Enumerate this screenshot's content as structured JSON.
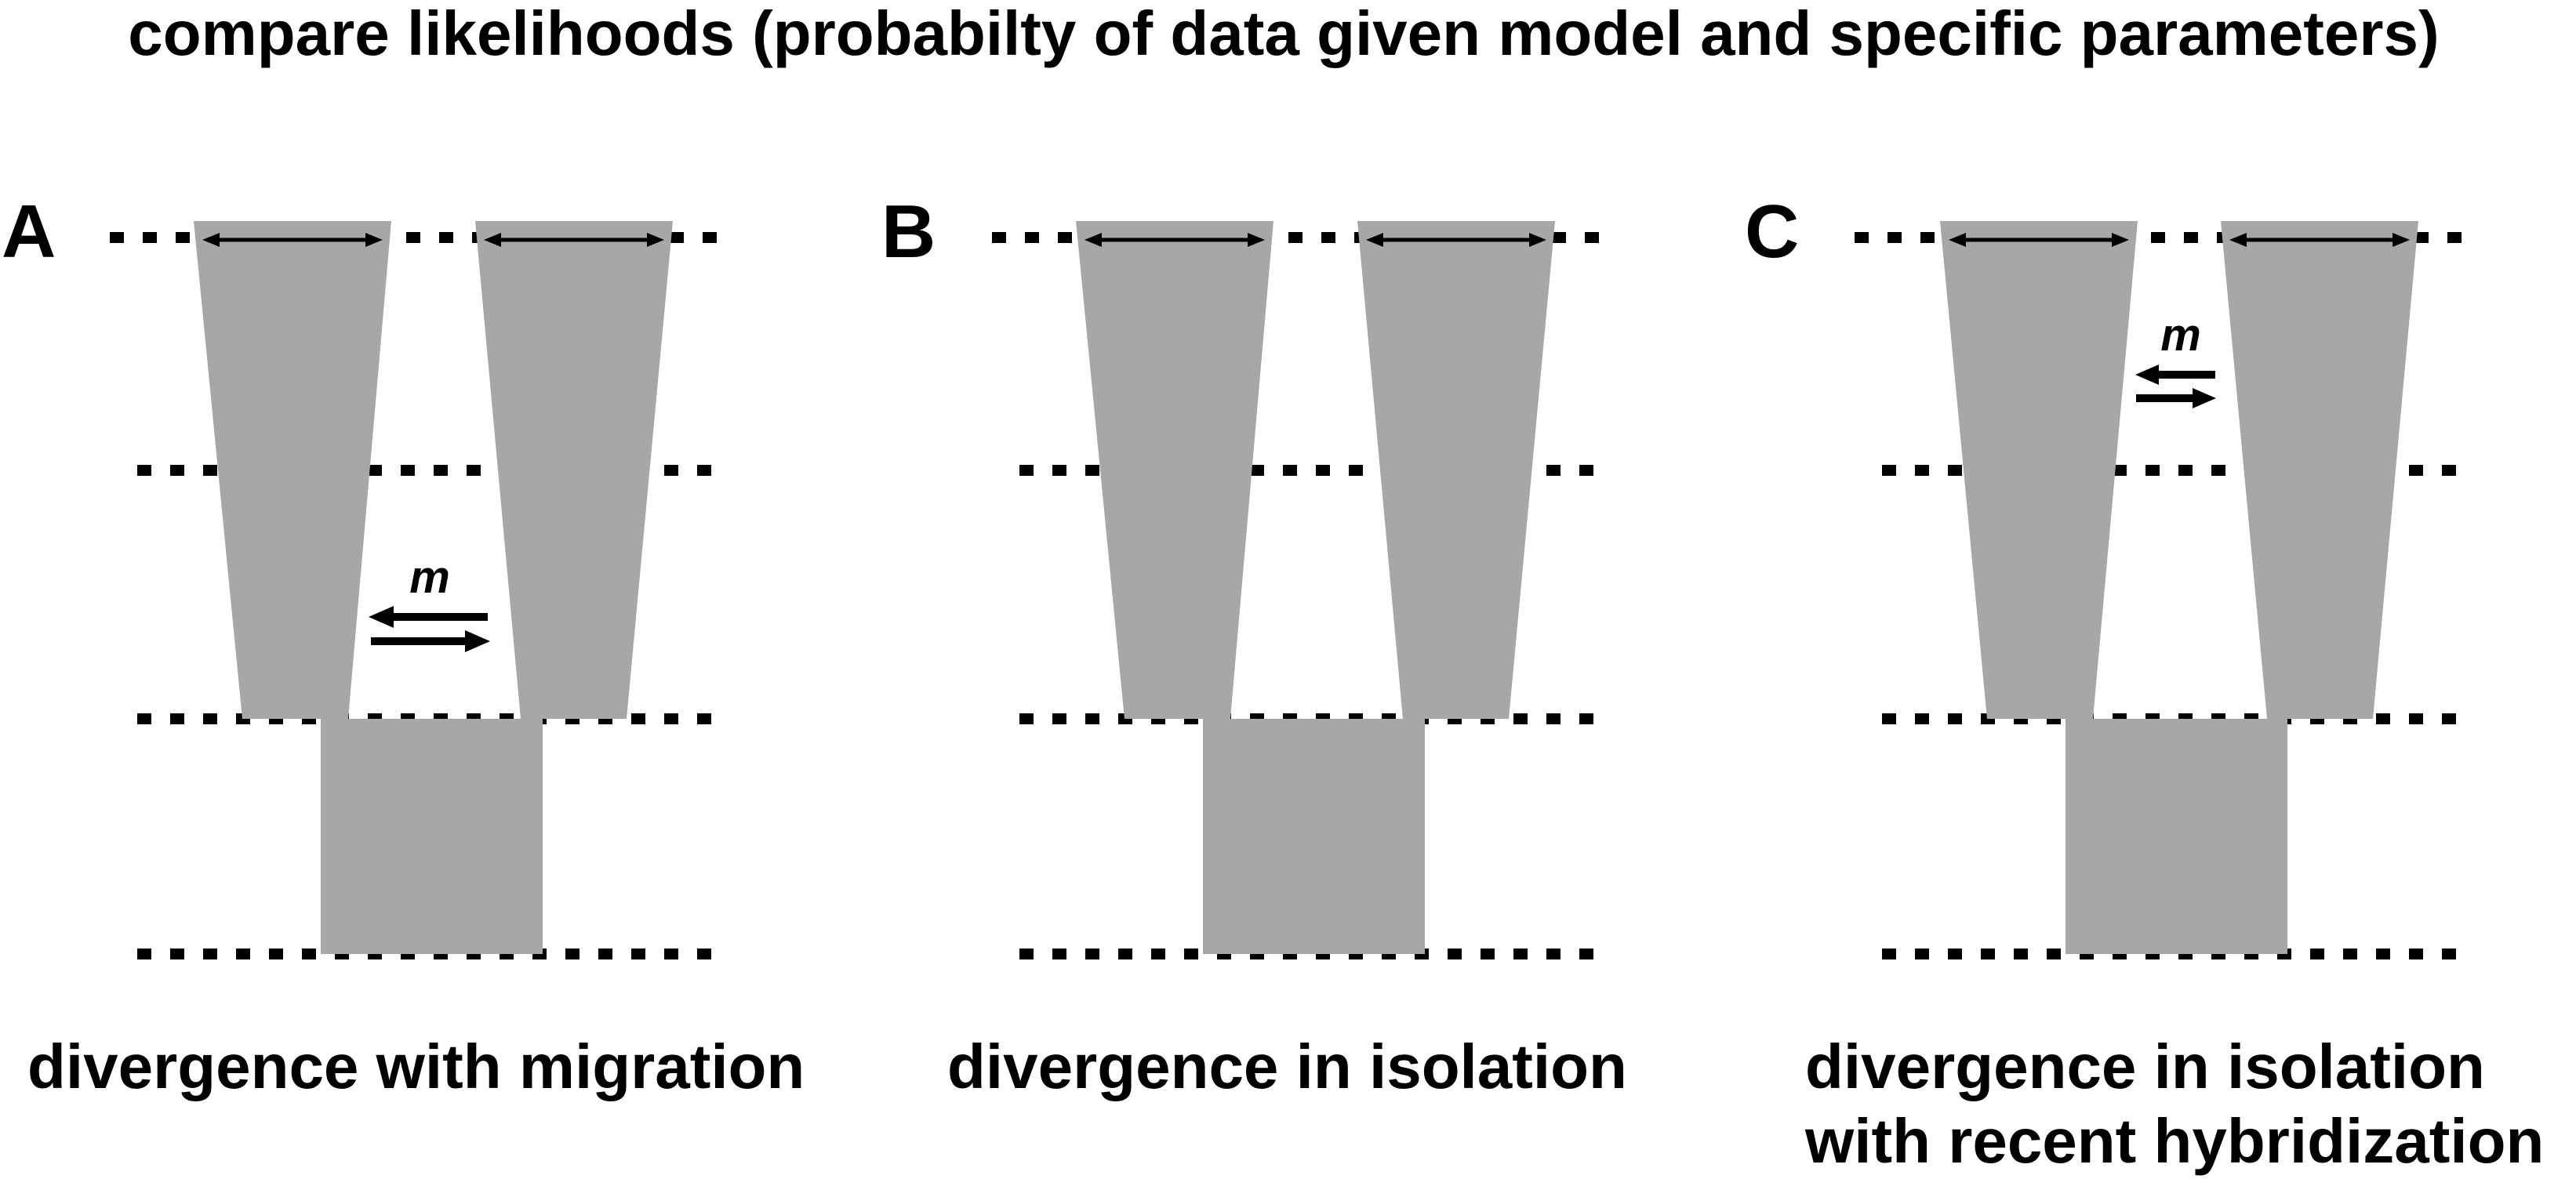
{
  "title": "compare likelihoods (probabilty of data given model and specific parameters)",
  "panels": [
    {
      "letter": "A",
      "caption_lines": [
        "divergence with migration"
      ],
      "migration_label": "m",
      "migration_position": "lower (between divergence and middle)"
    },
    {
      "letter": "B",
      "caption_lines": [
        "divergence in isolation"
      ]
    },
    {
      "letter": "C",
      "caption_lines": [
        "divergence in isolation",
        "with recent hybridization"
      ],
      "migration_label": "m",
      "migration_position": "upper (recent)"
    }
  ],
  "colors": {
    "population_fill": "#a7a7aa",
    "lines": "#000000",
    "background": "#ffffff"
  }
}
